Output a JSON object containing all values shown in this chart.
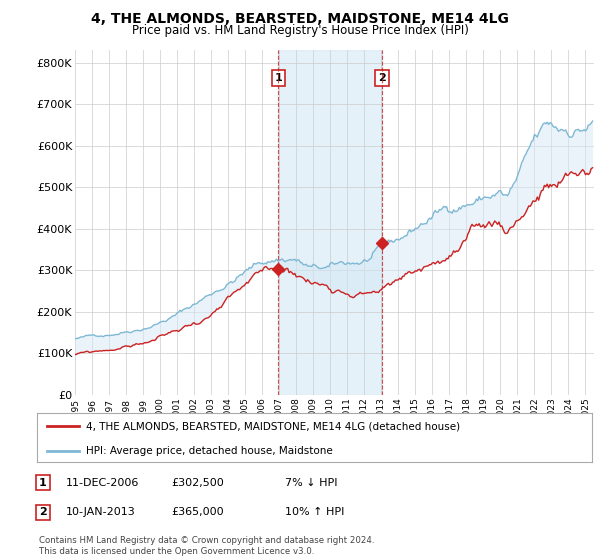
{
  "title": "4, THE ALMONDS, BEARSTED, MAIDSTONE, ME14 4LG",
  "subtitle": "Price paid vs. HM Land Registry's House Price Index (HPI)",
  "ylabel_ticks": [
    "£0",
    "£100K",
    "£200K",
    "£300K",
    "£400K",
    "£500K",
    "£600K",
    "£700K",
    "£800K"
  ],
  "ytick_vals": [
    0,
    100000,
    200000,
    300000,
    400000,
    500000,
    600000,
    700000,
    800000
  ],
  "ylim": [
    0,
    830000
  ],
  "xlim_start": 1995.0,
  "xlim_end": 2025.5,
  "sale1_x": 2006.958,
  "sale1_y": 302500,
  "sale2_x": 2013.042,
  "sale2_y": 365000,
  "hpi_color": "#7eb8d4",
  "price_color": "#cc2222",
  "shade_color": "#d4e8f5",
  "legend_line1": "4, THE ALMONDS, BEARSTED, MAIDSTONE, ME14 4LG (detached house)",
  "legend_line2": "HPI: Average price, detached house, Maidstone",
  "footer": "Contains HM Land Registry data © Crown copyright and database right 2024.\nThis data is licensed under the Open Government Licence v3.0.",
  "xtick_years": [
    1995,
    1996,
    1997,
    1998,
    1999,
    2000,
    2001,
    2002,
    2003,
    2004,
    2005,
    2006,
    2007,
    2008,
    2009,
    2010,
    2011,
    2012,
    2013,
    2014,
    2015,
    2016,
    2017,
    2018,
    2019,
    2020,
    2021,
    2022,
    2023,
    2024,
    2025
  ],
  "bg_color": "#ffffff",
  "grid_color": "#cccccc",
  "note1_label": "1",
  "note1_date": "11-DEC-2006",
  "note1_price": "£302,500",
  "note1_hpi": "7% ↓ HPI",
  "note2_label": "2",
  "note2_date": "10-JAN-2013",
  "note2_price": "£365,000",
  "note2_hpi": "10% ↑ HPI"
}
